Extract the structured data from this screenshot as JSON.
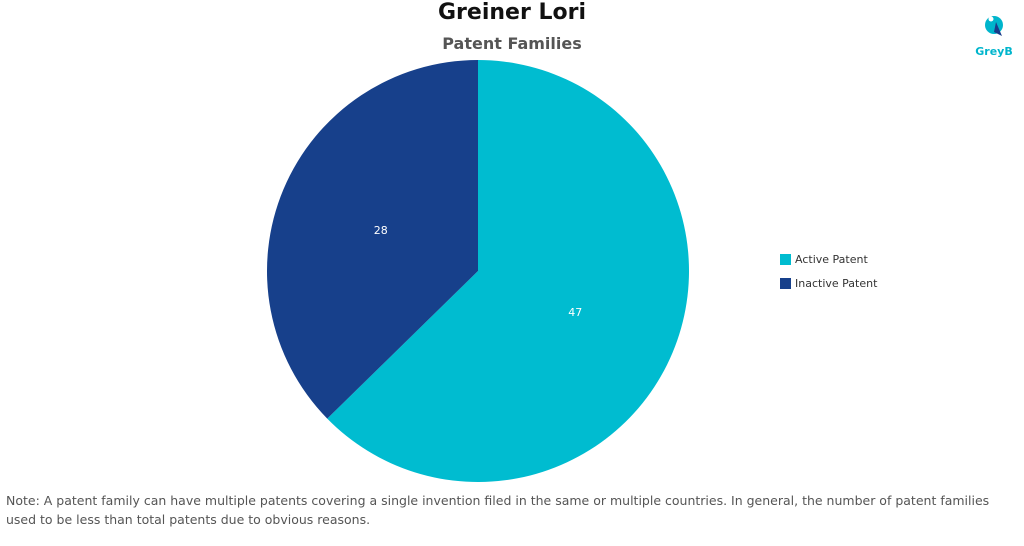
{
  "chart_data": {
    "type": "pie",
    "title": "Greiner Lori",
    "subtitle": "Patent Families",
    "categories": [
      "Active Patent",
      "Inactive Patent"
    ],
    "values": [
      47,
      28
    ],
    "colors": [
      "#00bcd0",
      "#17408b"
    ],
    "legend_position": "right"
  },
  "logo": {
    "text": "GreyB",
    "color": "#00b5cc"
  },
  "note": "Note: A patent family can have multiple patents covering a single invention filed in the same or multiple countries. In general, the number of patent families used to be less than total patents due to obvious reasons."
}
